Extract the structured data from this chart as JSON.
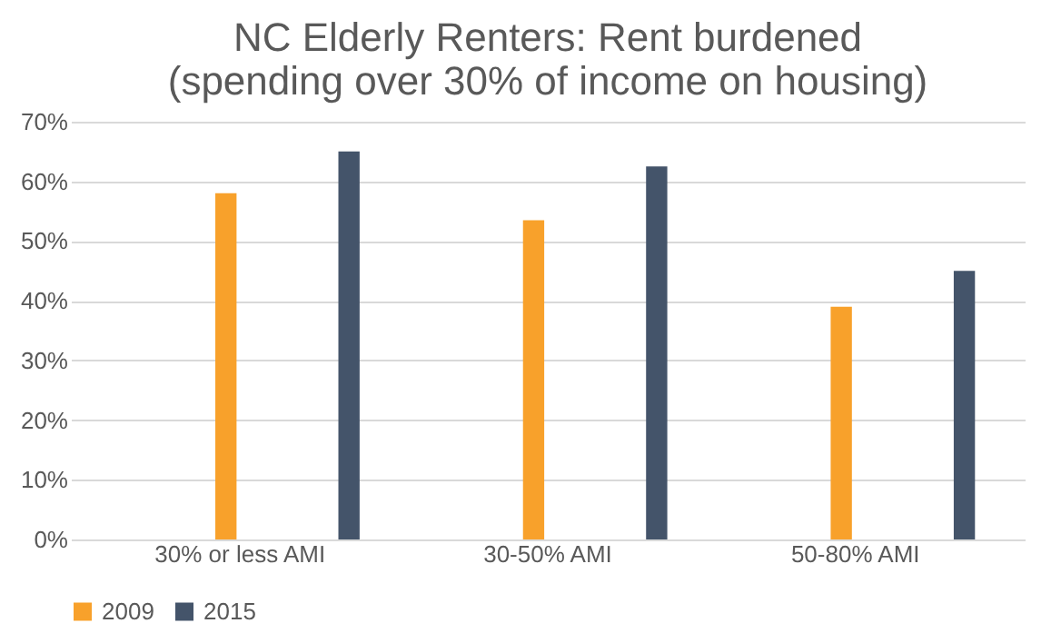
{
  "chart_data": {
    "type": "bar",
    "title": [
      "NC Elderly Renters: Rent burdened",
      "(spending over 30% of income on housing)"
    ],
    "categories": [
      "30% or less AMI",
      "30-50% AMI",
      "50-80% AMI"
    ],
    "series": [
      {
        "name": "2009",
        "color": "#f8a12b",
        "values": [
          58,
          53.5,
          39
        ]
      },
      {
        "name": "2015",
        "color": "#44546a",
        "values": [
          65,
          62.5,
          45
        ]
      }
    ],
    "ylim": [
      0,
      70
    ],
    "yticks": [
      {
        "value": 0,
        "label": "0%"
      },
      {
        "value": 10,
        "label": "10%"
      },
      {
        "value": 20,
        "label": "20%"
      },
      {
        "value": 30,
        "label": "30%"
      },
      {
        "value": 40,
        "label": "40%"
      },
      {
        "value": 50,
        "label": "50%"
      },
      {
        "value": 60,
        "label": "60%"
      },
      {
        "value": 70,
        "label": "70%"
      }
    ],
    "grid": "y",
    "legend": "bottom"
  }
}
